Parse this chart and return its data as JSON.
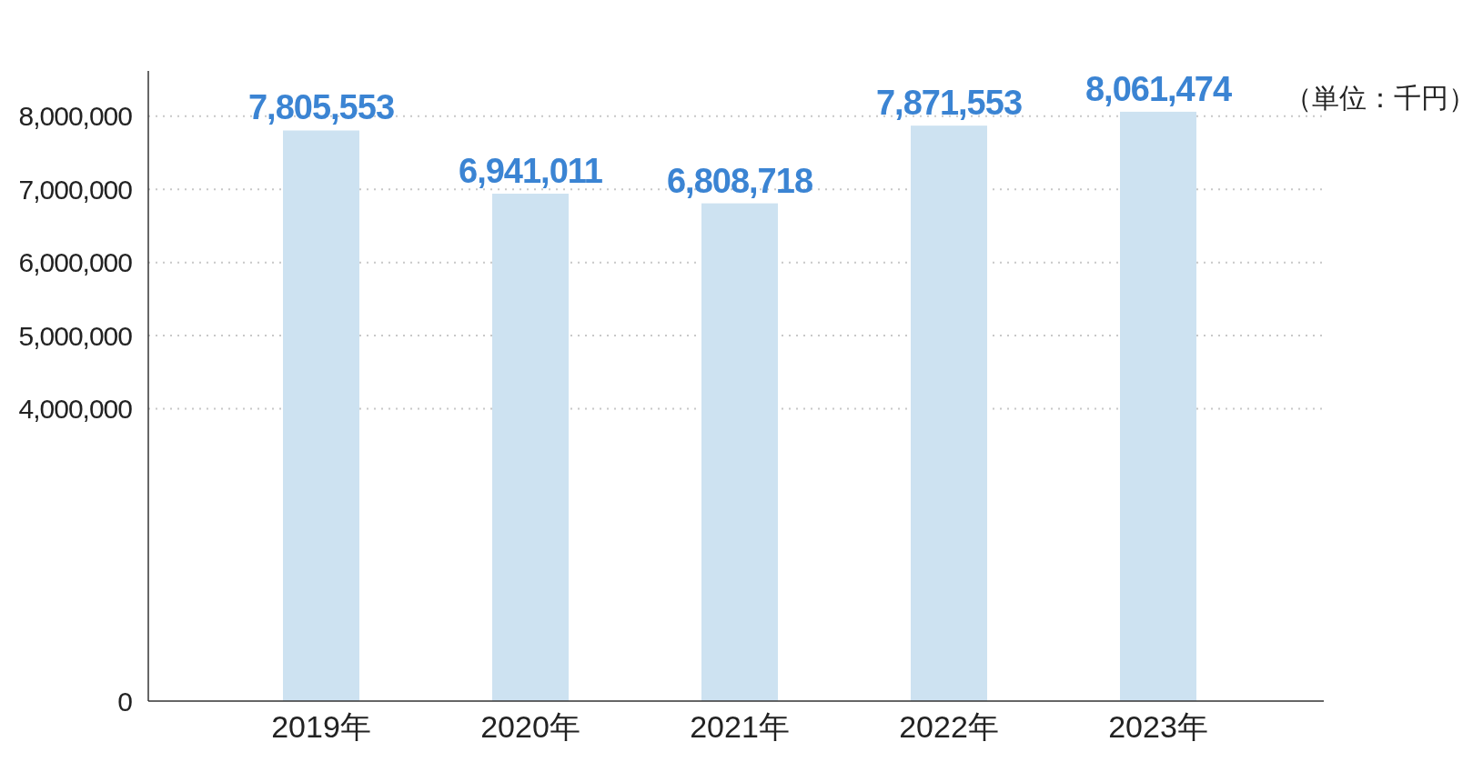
{
  "chart_data": {
    "type": "bar",
    "categories": [
      "2019年",
      "2020年",
      "2021年",
      "2022年",
      "2023年"
    ],
    "values": [
      7805553,
      6941011,
      6808718,
      7871553,
      8061474
    ],
    "color": "#cde2f1",
    "value_labels": [
      "7,805,553",
      "6,941,011",
      "6,808,718",
      "7,871,553",
      "8,061,474"
    ],
    "ylim": [
      0,
      8620000
    ],
    "yticks": [
      0,
      {
        "value": 4000000,
        "label": "4,000,000"
      },
      {
        "value": 5000000,
        "label": "5,000,000"
      },
      {
        "value": 6000000,
        "label": "6,000,000"
      },
      {
        "value": 7000000,
        "label": "7,000,000"
      },
      {
        "value": 8000000,
        "label": "8,000,000"
      }
    ],
    "grid": "y",
    "annotations": [
      "（単位：千円）"
    ]
  }
}
